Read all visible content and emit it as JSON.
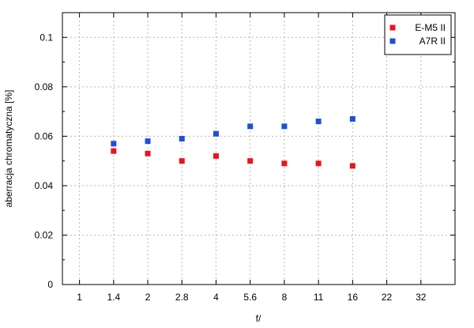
{
  "chart_data": {
    "type": "scatter",
    "xlabel": "f/",
    "ylabel": "aberracja chromatyczna [%]",
    "x_categories": [
      "1",
      "1.4",
      "2",
      "2.8",
      "4",
      "5.6",
      "8",
      "11",
      "16",
      "22",
      "32"
    ],
    "ylim": [
      0,
      0.11
    ],
    "y_ticks": [
      "0",
      "0.02",
      "0.04",
      "0.06",
      "0.08",
      "0.1"
    ],
    "y_tick_values": [
      0,
      0.02,
      0.04,
      0.06,
      0.08,
      0.1
    ],
    "y_minor_tick_values": [
      0.01,
      0.03,
      0.05,
      0.07,
      0.09,
      0.11
    ],
    "grid": true,
    "legend_position": "top-right",
    "series": [
      {
        "name": "E-M5 II",
        "color": "#e8161b",
        "x": [
          "1.4",
          "2",
          "2.8",
          "4",
          "5.6",
          "8",
          "11",
          "16"
        ],
        "values": [
          0.054,
          0.053,
          0.05,
          0.052,
          0.05,
          0.049,
          0.049,
          0.048
        ]
      },
      {
        "name": "A7R II",
        "color": "#1f4ed8",
        "x": [
          "1.4",
          "2",
          "2.8",
          "4",
          "5.6",
          "8",
          "11",
          "16"
        ],
        "values": [
          0.057,
          0.058,
          0.059,
          0.061,
          0.064,
          0.064,
          0.066,
          0.067
        ]
      }
    ]
  }
}
